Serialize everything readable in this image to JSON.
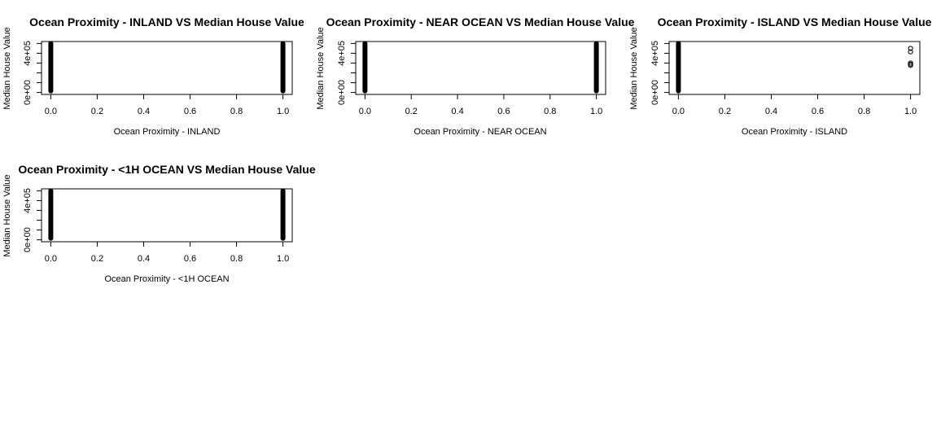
{
  "chart_data": [
    {
      "type": "scatter",
      "title": "Ocean Proximity - INLAND VS Median House Value",
      "xlabel": "Ocean Proximity - INLAND",
      "ylabel": "Median House Value",
      "xlim": [
        0,
        1
      ],
      "ylim": [
        0,
        500001
      ],
      "x_ticks": [
        0.0,
        0.2,
        0.4,
        0.6,
        0.8,
        1.0
      ],
      "x_tick_labels": [
        "0.0",
        "0.2",
        "0.4",
        "0.6",
        "0.8",
        "1.0"
      ],
      "y_ticks": [
        0,
        100000,
        200000,
        300000,
        400000,
        500000
      ],
      "y_tick_labels": [
        "0e+00",
        "",
        "",
        "",
        "4e+05",
        ""
      ],
      "grid": false,
      "series": [
        {
          "x": 0,
          "y_range": [
            14999,
            500001
          ]
        },
        {
          "x": 1,
          "y_range": [
            14999,
            500001
          ]
        }
      ]
    },
    {
      "type": "scatter",
      "title": "Ocean Proximity - NEAR OCEAN VS Median House Value",
      "xlabel": "Ocean Proximity - NEAR OCEAN",
      "ylabel": "Median House Value",
      "xlim": [
        0,
        1
      ],
      "ylim": [
        0,
        500001
      ],
      "x_ticks": [
        0.0,
        0.2,
        0.4,
        0.6,
        0.8,
        1.0
      ],
      "x_tick_labels": [
        "0.0",
        "0.2",
        "0.4",
        "0.6",
        "0.8",
        "1.0"
      ],
      "y_ticks": [
        0,
        100000,
        200000,
        300000,
        400000,
        500000
      ],
      "y_tick_labels": [
        "0e+00",
        "",
        "",
        "",
        "4e+05",
        ""
      ],
      "grid": false,
      "series": [
        {
          "x": 0,
          "y_range": [
            14999,
            500001
          ]
        },
        {
          "x": 1,
          "y_range": [
            14999,
            500001
          ]
        }
      ]
    },
    {
      "type": "scatter",
      "title": "Ocean Proximity - ISLAND VS Median House Value",
      "xlabel": "Ocean Proximity - ISLAND",
      "ylabel": "Median House Value",
      "xlim": [
        0,
        1
      ],
      "ylim": [
        0,
        500001
      ],
      "x_ticks": [
        0.0,
        0.2,
        0.4,
        0.6,
        0.8,
        1.0
      ],
      "x_tick_labels": [
        "0.0",
        "0.2",
        "0.4",
        "0.6",
        "0.8",
        "1.0"
      ],
      "y_ticks": [
        0,
        100000,
        200000,
        300000,
        400000,
        500000
      ],
      "y_tick_labels": [
        "0e+00",
        "",
        "",
        "",
        "4e+05",
        ""
      ],
      "grid": false,
      "series": [
        {
          "x": 0,
          "y_range": [
            14999,
            500001
          ]
        },
        {
          "x": 1,
          "points": [
            450000,
            414700,
            287500,
            300000,
            276000
          ]
        }
      ]
    },
    {
      "type": "scatter",
      "title": "Ocean Proximity - <1H OCEAN VS Median House Value",
      "xlabel": "Ocean Proximity - <1H OCEAN",
      "ylabel": "Median House Value",
      "xlim": [
        0,
        1
      ],
      "ylim": [
        0,
        500001
      ],
      "x_ticks": [
        0.0,
        0.2,
        0.4,
        0.6,
        0.8,
        1.0
      ],
      "x_tick_labels": [
        "0.0",
        "0.2",
        "0.4",
        "0.6",
        "0.8",
        "1.0"
      ],
      "y_ticks": [
        0,
        100000,
        200000,
        300000,
        400000,
        500000
      ],
      "y_tick_labels": [
        "0e+00",
        "",
        "",
        "",
        "4e+05",
        ""
      ],
      "grid": false,
      "series": [
        {
          "x": 0,
          "y_range": [
            14999,
            500001
          ]
        },
        {
          "x": 1,
          "y_range": [
            14999,
            500001
          ]
        }
      ]
    }
  ]
}
